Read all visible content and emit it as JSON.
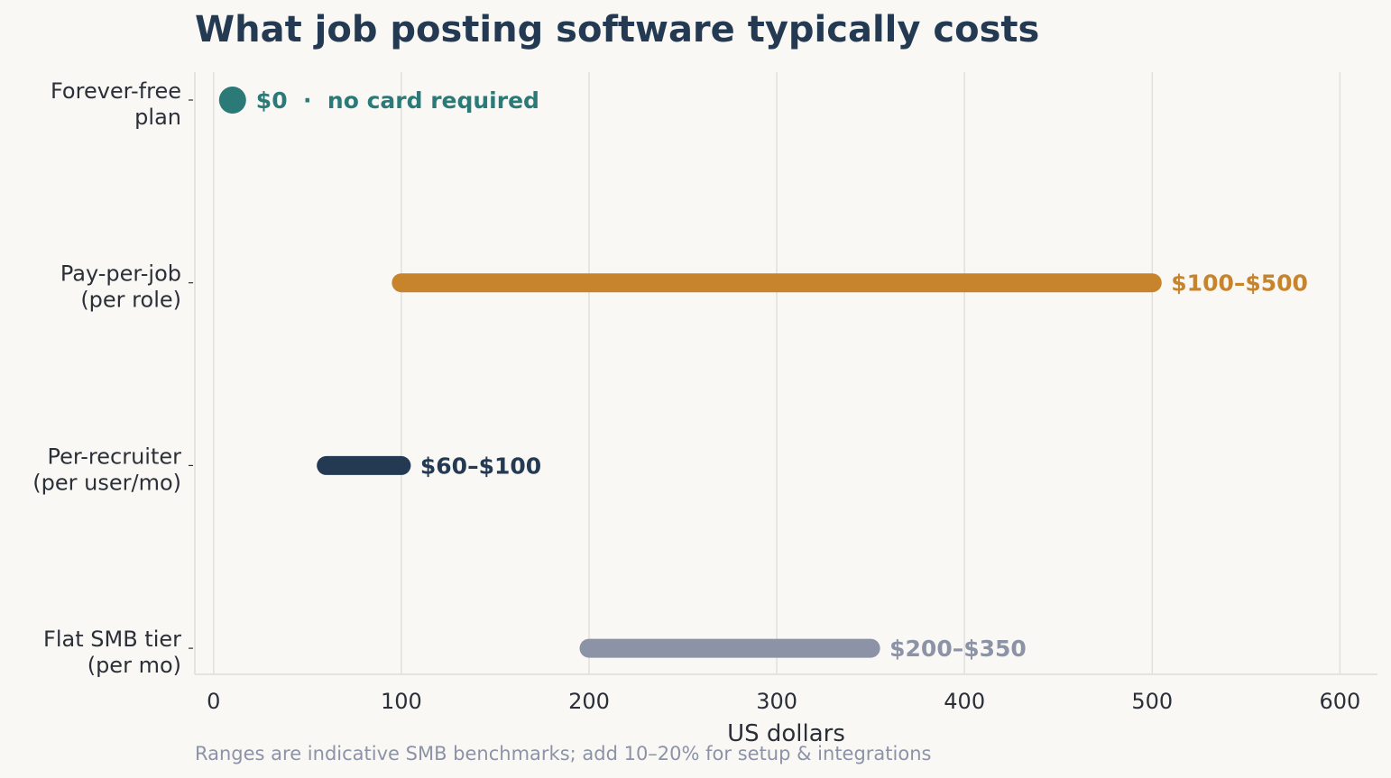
{
  "chart_data": {
    "type": "range-bar",
    "title": "What job posting software typically costs",
    "xlabel": "US dollars",
    "xlim": [
      -10,
      620
    ],
    "xticks": [
      0,
      100,
      200,
      300,
      400,
      500,
      600
    ],
    "grid": "vertical",
    "categories": [
      {
        "label": [
          "Forever-free",
          "plan"
        ],
        "low": 0,
        "high": 0,
        "marker": "point",
        "annotation": "$0  ·  no card required",
        "color": "#2b7a78"
      },
      {
        "label": [
          "Pay-per-job",
          "(per role)"
        ],
        "low": 100,
        "high": 500,
        "marker": "bar",
        "annotation": "$100–$500",
        "color": "#c8842c"
      },
      {
        "label": [
          "Per-recruiter",
          "(per user/mo)"
        ],
        "low": 60,
        "high": 100,
        "marker": "bar",
        "annotation": "$60–$100",
        "color": "#243a52"
      },
      {
        "label": [
          "Flat SMB tier",
          "(per mo)"
        ],
        "low": 200,
        "high": 350,
        "marker": "bar",
        "annotation": "$200–$350",
        "color": "#8c93a6"
      }
    ]
  },
  "footnote": "Ranges are indicative SMB benchmarks; add 10–20% for setup & integrations"
}
